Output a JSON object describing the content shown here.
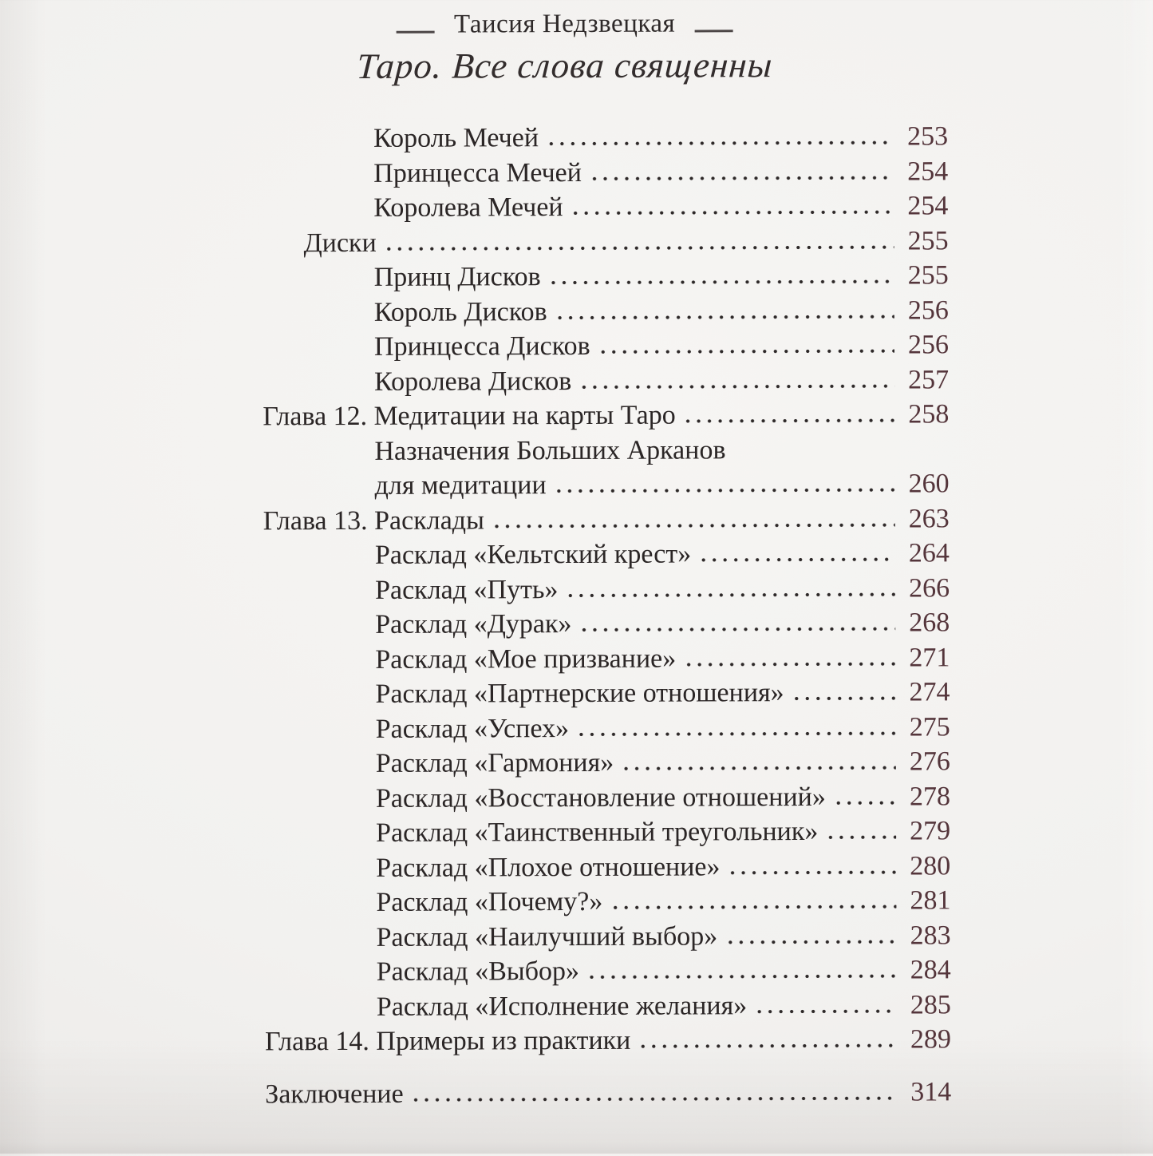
{
  "page_header": {
    "author": "Таисия Недзвецкая",
    "series_title": "Таро. Все слова священны"
  },
  "toc": {
    "entries": [
      {
        "label": "Король Мечей",
        "page": "253",
        "level": 2
      },
      {
        "label": "Принцесса Мечей",
        "page": "254",
        "level": 2
      },
      {
        "label": "Королева Мечей",
        "page": "254",
        "level": 2
      },
      {
        "label": "Диски",
        "page": "255",
        "level": 1
      },
      {
        "label": "Принц Дисков",
        "page": "255",
        "level": 2
      },
      {
        "label": "Король Дисков",
        "page": "256",
        "level": 2
      },
      {
        "label": "Принцесса Дисков",
        "page": "256",
        "level": 2
      },
      {
        "label": "Королева Дисков",
        "page": "257",
        "level": 2
      },
      {
        "label": "Глава 12. Медитации на карты Таро",
        "page": "258",
        "level": 0
      },
      {
        "label": "Назначения Больших Арканов",
        "page": "",
        "level": 2
      },
      {
        "label": "для медитации",
        "page": "260",
        "level": 2
      },
      {
        "label": "Глава 13. Расклады",
        "page": "263",
        "level": 0
      },
      {
        "label": "Расклад «Кельтский крест»",
        "page": "264",
        "level": 2
      },
      {
        "label": "Расклад «Путь»",
        "page": "266",
        "level": 2
      },
      {
        "label": "Расклад «Дурак»",
        "page": "268",
        "level": 2
      },
      {
        "label": "Расклад «Мое призвание»",
        "page": "271",
        "level": 2
      },
      {
        "label": "Расклад «Партнерские отношения»",
        "page": "274",
        "level": 2
      },
      {
        "label": "Расклад «Успех»",
        "page": "275",
        "level": 2
      },
      {
        "label": "Расклад «Гармония»",
        "page": "276",
        "level": 2
      },
      {
        "label": "Расклад «Восстановление отношений»",
        "page": "278",
        "level": 2
      },
      {
        "label": "Расклад «Таинственный треугольник»",
        "page": "279",
        "level": 2
      },
      {
        "label": "Расклад «Плохое отношение»",
        "page": "280",
        "level": 2
      },
      {
        "label": "Расклад «Почему?»",
        "page": "281",
        "level": 2
      },
      {
        "label": "Расклад «Наилучший выбор»",
        "page": "283",
        "level": 2
      },
      {
        "label": "Расклад «Выбор»",
        "page": "284",
        "level": 2
      },
      {
        "label": "Расклад «Исполнение желания»",
        "page": "285",
        "level": 2
      },
      {
        "label": "Глава 14. Примеры из практики",
        "page": "289",
        "level": 0
      },
      {
        "label": "Заключение",
        "page": "314",
        "level": 0,
        "gap_before": true
      }
    ]
  },
  "colors": {
    "paper": "#f6f5f3",
    "text": "#2b2626",
    "page_number": "#54353b"
  }
}
